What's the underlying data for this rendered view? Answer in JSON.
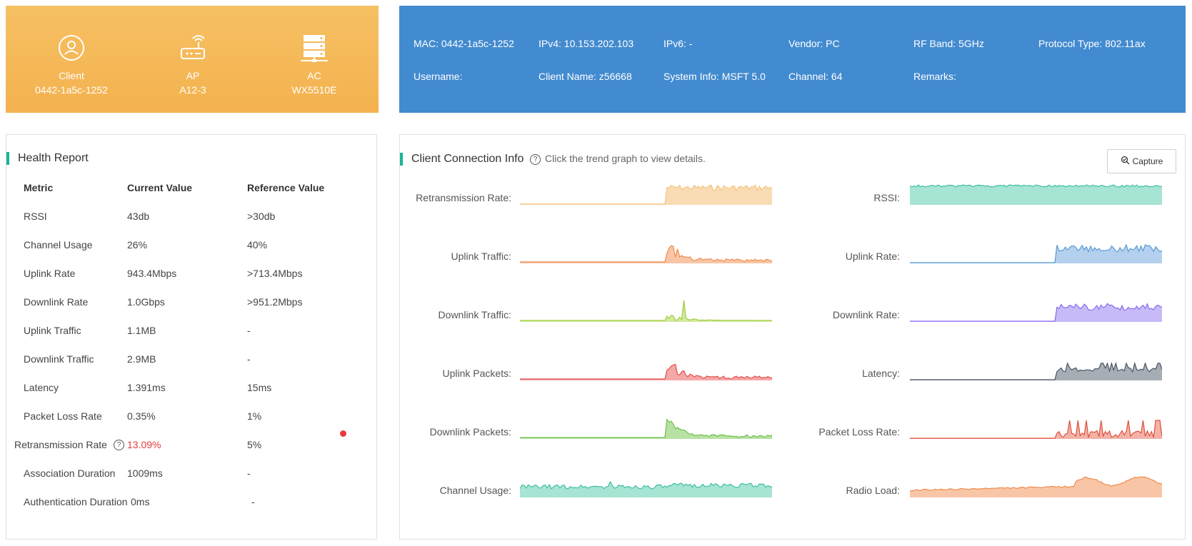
{
  "topology": {
    "nodes": [
      {
        "label": "Client",
        "value": "0442-1a5c-1252",
        "icon": "user-icon"
      },
      {
        "label": "AP",
        "value": "A12-3",
        "icon": "router-icon"
      },
      {
        "label": "AC",
        "value": "WX5510E",
        "icon": "server-icon"
      }
    ]
  },
  "client_info": {
    "mac": "MAC: 0442-1a5c-1252",
    "ipv4": "IPv4: 10.153.202.103",
    "ipv6": "IPv6: -",
    "vendor": "Vendor: PC",
    "rf_band": "RF Band: 5GHz",
    "protocol_type": "Protocol Type: 802.11ax",
    "username": "Username:",
    "client_name": "Client Name: z56668",
    "system_info": "System Info: MSFT 5.0",
    "channel": "Channel: 64",
    "remarks": "Remarks:"
  },
  "health_report": {
    "title": "Health Report",
    "columns": [
      "Metric",
      "Current Value",
      "Reference Value"
    ],
    "rows": [
      {
        "metric": "RSSI",
        "current": "43db",
        "reference": ">30db"
      },
      {
        "metric": "Channel Usage",
        "current": "26%",
        "reference": "40%"
      },
      {
        "metric": "Uplink Rate",
        "current": "943.4Mbps",
        "reference": ">713.4Mbps"
      },
      {
        "metric": "Downlink Rate",
        "current": "1.0Gbps",
        "reference": ">951.2Mbps"
      },
      {
        "metric": "Uplink Traffic",
        "current": "1.1MB",
        "reference": "-"
      },
      {
        "metric": "Downlink Traffic",
        "current": "2.9MB",
        "reference": "-"
      },
      {
        "metric": "Latency",
        "current": "1.391ms",
        "reference": "15ms"
      },
      {
        "metric": "Packet Loss Rate",
        "current": "0.35%",
        "reference": "1%"
      },
      {
        "metric": "Retransmission Rate",
        "current": "13.09%",
        "reference": "5%"
      },
      {
        "metric": "Association Duration",
        "current": "1009ms",
        "reference": "-"
      },
      {
        "metric": "Authentication Duration",
        "current": "0ms",
        "reference": "-"
      }
    ],
    "warning_color": "#e63a3a"
  },
  "connection_info": {
    "title": "Client Connection Info",
    "hint": "Click the trend graph to view details.",
    "capture_label": "Capture",
    "trends_left": [
      {
        "label": "Retransmission Rate:",
        "color": "#f5c27a",
        "fill": "#f9dcb4"
      },
      {
        "label": "Uplink Traffic:",
        "color": "#f08a4b",
        "fill": "#f8c6a6"
      },
      {
        "label": "Downlink Traffic:",
        "color": "#9ccc3c",
        "fill": "#d3ea9e"
      },
      {
        "label": "Uplink Packets:",
        "color": "#e84a4a",
        "fill": "#f5a8a8"
      },
      {
        "label": "Downlink Packets:",
        "color": "#6cc04a",
        "fill": "#b8e2a4"
      },
      {
        "label": "Channel Usage:",
        "color": "#3fbf9f",
        "fill": "#a6e4d4"
      }
    ],
    "trends_right": [
      {
        "label": "RSSI:",
        "color": "#3fbf9f",
        "fill": "#a6e4d4"
      },
      {
        "label": "Uplink Rate:",
        "color": "#5b9bd5",
        "fill": "#b3d0ee"
      },
      {
        "label": "Downlink Rate:",
        "color": "#8a6cf0",
        "fill": "#c8baf8"
      },
      {
        "label": "Latency:",
        "color": "#4b5563",
        "fill": "#a7adb5"
      },
      {
        "label": "Packet Loss Rate:",
        "color": "#e0503c",
        "fill": "#f2b2a8"
      },
      {
        "label": "Radio Load:",
        "color": "#f08a4b",
        "fill": "#f8c6a6"
      }
    ]
  },
  "colors": {
    "topology_bg": "#f4b24f",
    "client_info_bg": "#438bd0",
    "accent": "#1bb395"
  }
}
